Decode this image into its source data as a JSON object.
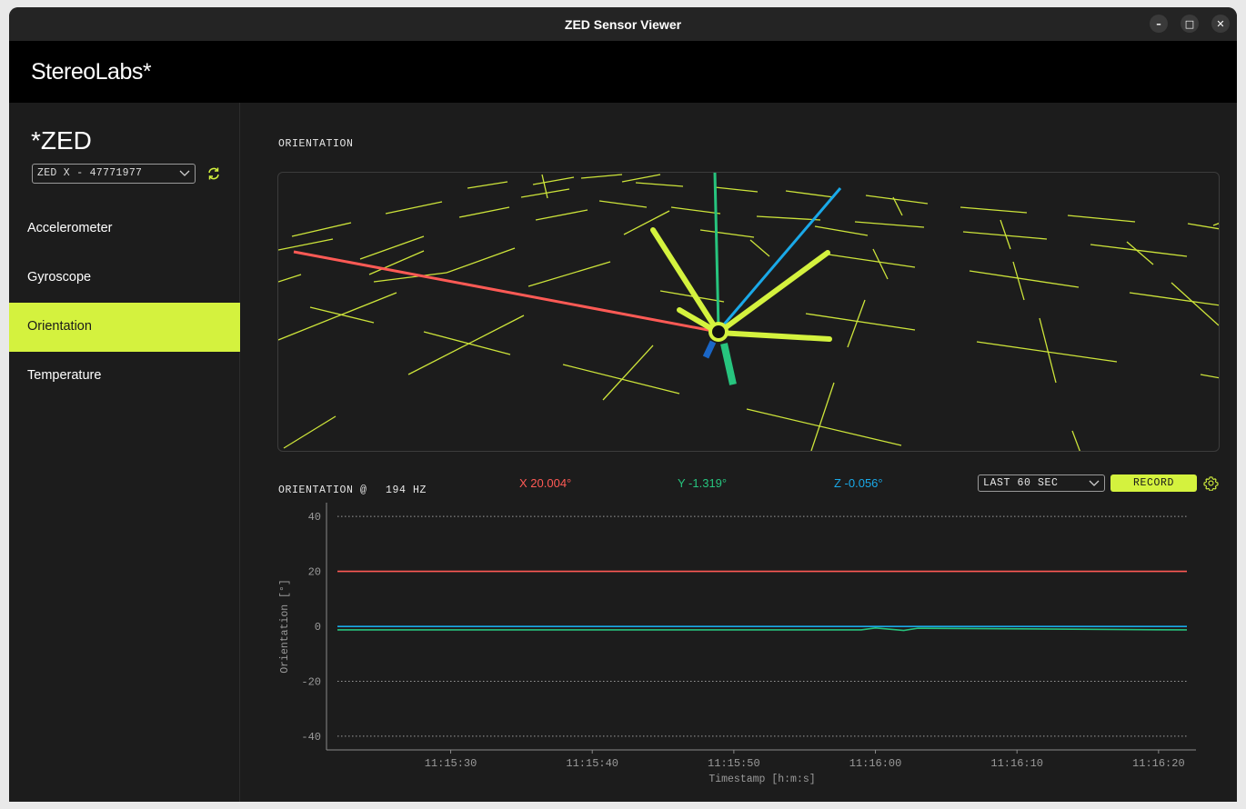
{
  "window": {
    "title": "ZED Sensor Viewer"
  },
  "titlebar_buttons": {
    "minimize": "–",
    "maximize": "□",
    "close": "✕"
  },
  "header": {
    "brand": "StereoLabs*"
  },
  "sidebar": {
    "device_title": "*ZED",
    "device_select": "ZED X - 47771977",
    "items": [
      {
        "label": "Accelerometer",
        "active": false
      },
      {
        "label": "Gyroscope",
        "active": false
      },
      {
        "label": "Orientation",
        "active": true
      },
      {
        "label": "Temperature",
        "active": false
      }
    ]
  },
  "main": {
    "section_title": "ORIENTATION",
    "readout": {
      "label": "ORIENTATION @",
      "rate": "194 HZ",
      "x": "X 20.004°",
      "y": "Y -1.319°",
      "z": "Z -0.056°"
    },
    "range_select": "LAST 60 SEC",
    "record_label": "RECORD"
  },
  "colors": {
    "accent": "#d4f23e",
    "x_axis": "#ff5a55",
    "y_axis": "#27c47e",
    "z_axis": "#1aa9e8"
  },
  "chart_data": {
    "type": "line",
    "xlabel": "Timestamp [h:m:s]",
    "ylabel": "Orientation [°]",
    "x_ticks": [
      "11:15:30",
      "11:15:40",
      "11:15:50",
      "11:16:00",
      "11:16:10",
      "11:16:20"
    ],
    "y_ticks": [
      40,
      20,
      0,
      -20,
      -40
    ],
    "ylim": [
      -45,
      45
    ],
    "grid": true,
    "series": [
      {
        "name": "X",
        "color": "#ff5a55",
        "x": [
          "11:15:22",
          "11:16:22"
        ],
        "values": [
          20.004,
          20.004
        ]
      },
      {
        "name": "Y",
        "color": "#27c47e",
        "x": [
          "11:15:22",
          "11:15:59",
          "11:16:00",
          "11:16:02",
          "11:16:03",
          "11:16:22"
        ],
        "values": [
          -1.3,
          -1.3,
          -0.6,
          -1.5,
          -0.7,
          -1.319
        ]
      },
      {
        "name": "Z",
        "color": "#1aa9e8",
        "x": [
          "11:15:22",
          "11:16:22"
        ],
        "values": [
          -0.056,
          -0.056
        ]
      }
    ]
  }
}
